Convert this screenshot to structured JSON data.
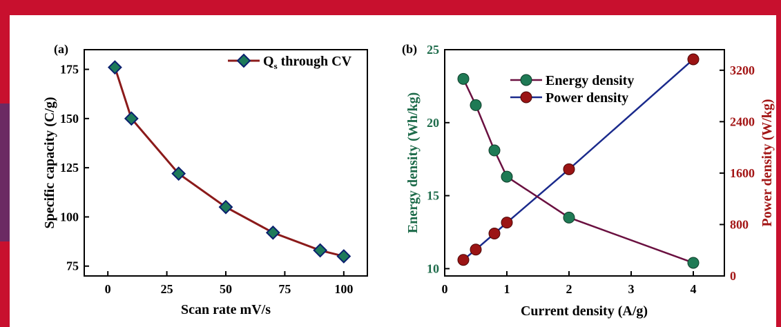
{
  "colors": {
    "frame_red": "#c8102e",
    "frame_blue": "#1f3f8f",
    "capacity_line": "#8b1a1a",
    "diamond_fill": "#1d7a5a",
    "diamond_edge": "#0a1f6e",
    "energy_line": "#6a1040",
    "energy_marker": "#1f7a55",
    "power_line": "#1a2a8c",
    "power_marker": "#9b1414",
    "energy_axis": "#1d6b4a",
    "power_axis": "#a31515"
  },
  "chart_data": [
    {
      "type": "line",
      "panel_label": "(a)",
      "xlabel": "Scan rate mV/s",
      "ylabel": "Specific capacity (C/g)",
      "xlim": [
        -10,
        110
      ],
      "ylim": [
        70,
        185
      ],
      "xticks": [
        0,
        25,
        50,
        75,
        100
      ],
      "yticks": [
        75,
        100,
        125,
        150,
        175
      ],
      "series": [
        {
          "name_main": "Q",
          "name_sub": "s",
          "name_rest": " through CV",
          "marker": "diamond",
          "x": [
            3,
            10,
            30,
            50,
            70,
            90,
            100
          ],
          "y": [
            176,
            150,
            122,
            105,
            92,
            83,
            80
          ]
        }
      ],
      "legend": "top-right",
      "grid": false
    },
    {
      "type": "line",
      "panel_label": "(b)",
      "xlabel": "Current density (A/g)",
      "ylabel": "Energy density (Wh/kg)",
      "y2label": "Power density (W/kg)",
      "xlim": [
        0,
        4.5
      ],
      "ylim": [
        9.5,
        25
      ],
      "y2lim": [
        0,
        3520
      ],
      "xticks": [
        0,
        1,
        2,
        3,
        4
      ],
      "yticks": [
        10,
        15,
        20,
        25
      ],
      "y2ticks": [
        0,
        800,
        1600,
        2400,
        3200
      ],
      "series": [
        {
          "name": "Energy density",
          "axis": "left",
          "x": [
            0.3,
            0.5,
            0.8,
            1,
            2,
            4
          ],
          "y": [
            23.0,
            21.2,
            18.1,
            16.3,
            13.5,
            10.4
          ]
        },
        {
          "name": "Power density",
          "axis": "right",
          "x": [
            0.3,
            0.5,
            0.8,
            1,
            2,
            4
          ],
          "y": [
            250,
            410,
            660,
            830,
            1660,
            3370
          ]
        }
      ],
      "legend": "top-left",
      "grid": false
    }
  ]
}
